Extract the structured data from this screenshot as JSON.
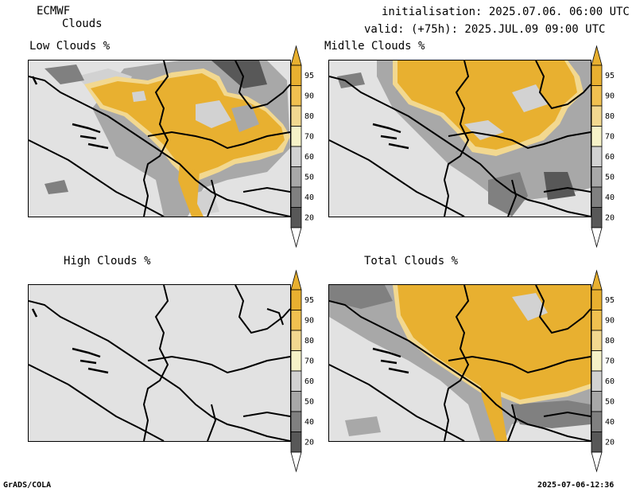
{
  "header": {
    "model": "ECMWF",
    "product": "Clouds",
    "init": "initialisation: 2025.07.06. 06:00 UTC",
    "valid": "valid: (+75h): 2025.JUL.09 09:00 UTC"
  },
  "panels": {
    "low": {
      "title": "Low Clouds %"
    },
    "middle": {
      "title": "Midlle Clouds %"
    },
    "high": {
      "title": "High Clouds %"
    },
    "total": {
      "title": "Total Clouds %"
    }
  },
  "colorbar": {
    "levels": [
      "95",
      "90",
      "80",
      "70",
      "60",
      "50",
      "40",
      "20"
    ],
    "colors": {
      "c95": "#e8b030",
      "c90": "#f0c050",
      "c80": "#f2d890",
      "c70": "#f6f2c8",
      "c60": "#d2d2d2",
      "c50": "#a8a8a8",
      "c40": "#808080",
      "c20": "#585858",
      "below": "#e2e2e2"
    }
  },
  "footer": {
    "left": "GrADS/COLA",
    "right": "2025-07-06-12:36"
  }
}
